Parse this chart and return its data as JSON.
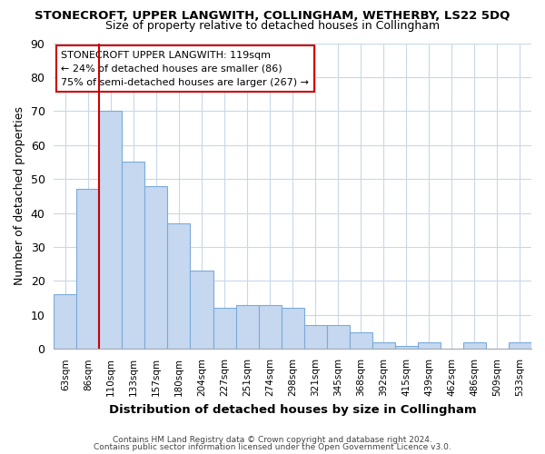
{
  "title": "STONECROFT, UPPER LANGWITH, COLLINGHAM, WETHERBY, LS22 5DQ",
  "subtitle": "Size of property relative to detached houses in Collingham",
  "xlabel": "Distribution of detached houses by size in Collingham",
  "ylabel": "Number of detached properties",
  "categories": [
    "63sqm",
    "86sqm",
    "110sqm",
    "133sqm",
    "157sqm",
    "180sqm",
    "204sqm",
    "227sqm",
    "251sqm",
    "274sqm",
    "298sqm",
    "321sqm",
    "345sqm",
    "368sqm",
    "392sqm",
    "415sqm",
    "439sqm",
    "462sqm",
    "486sqm",
    "509sqm",
    "533sqm"
  ],
  "values": [
    16,
    47,
    70,
    55,
    48,
    37,
    23,
    12,
    13,
    13,
    12,
    7,
    7,
    5,
    2,
    1,
    2,
    0,
    2,
    0,
    2
  ],
  "bar_color": "#c5d8f0",
  "bar_edge_color": "#7aabda",
  "ylim": [
    0,
    90
  ],
  "yticks": [
    0,
    10,
    20,
    30,
    40,
    50,
    60,
    70,
    80,
    90
  ],
  "vline_x": 2,
  "vline_color": "#cc0000",
  "ann_line1": "STONECROFT UPPER LANGWITH: 119sqm",
  "ann_line2": "← 24% of detached houses are smaller (86)",
  "ann_line3": "75% of semi-detached houses are larger (267) →",
  "background_color": "#ffffff",
  "grid_color": "#c8d8e8",
  "footer_line1": "Contains HM Land Registry data © Crown copyright and database right 2024.",
  "footer_line2": "Contains public sector information licensed under the Open Government Licence v3.0."
}
